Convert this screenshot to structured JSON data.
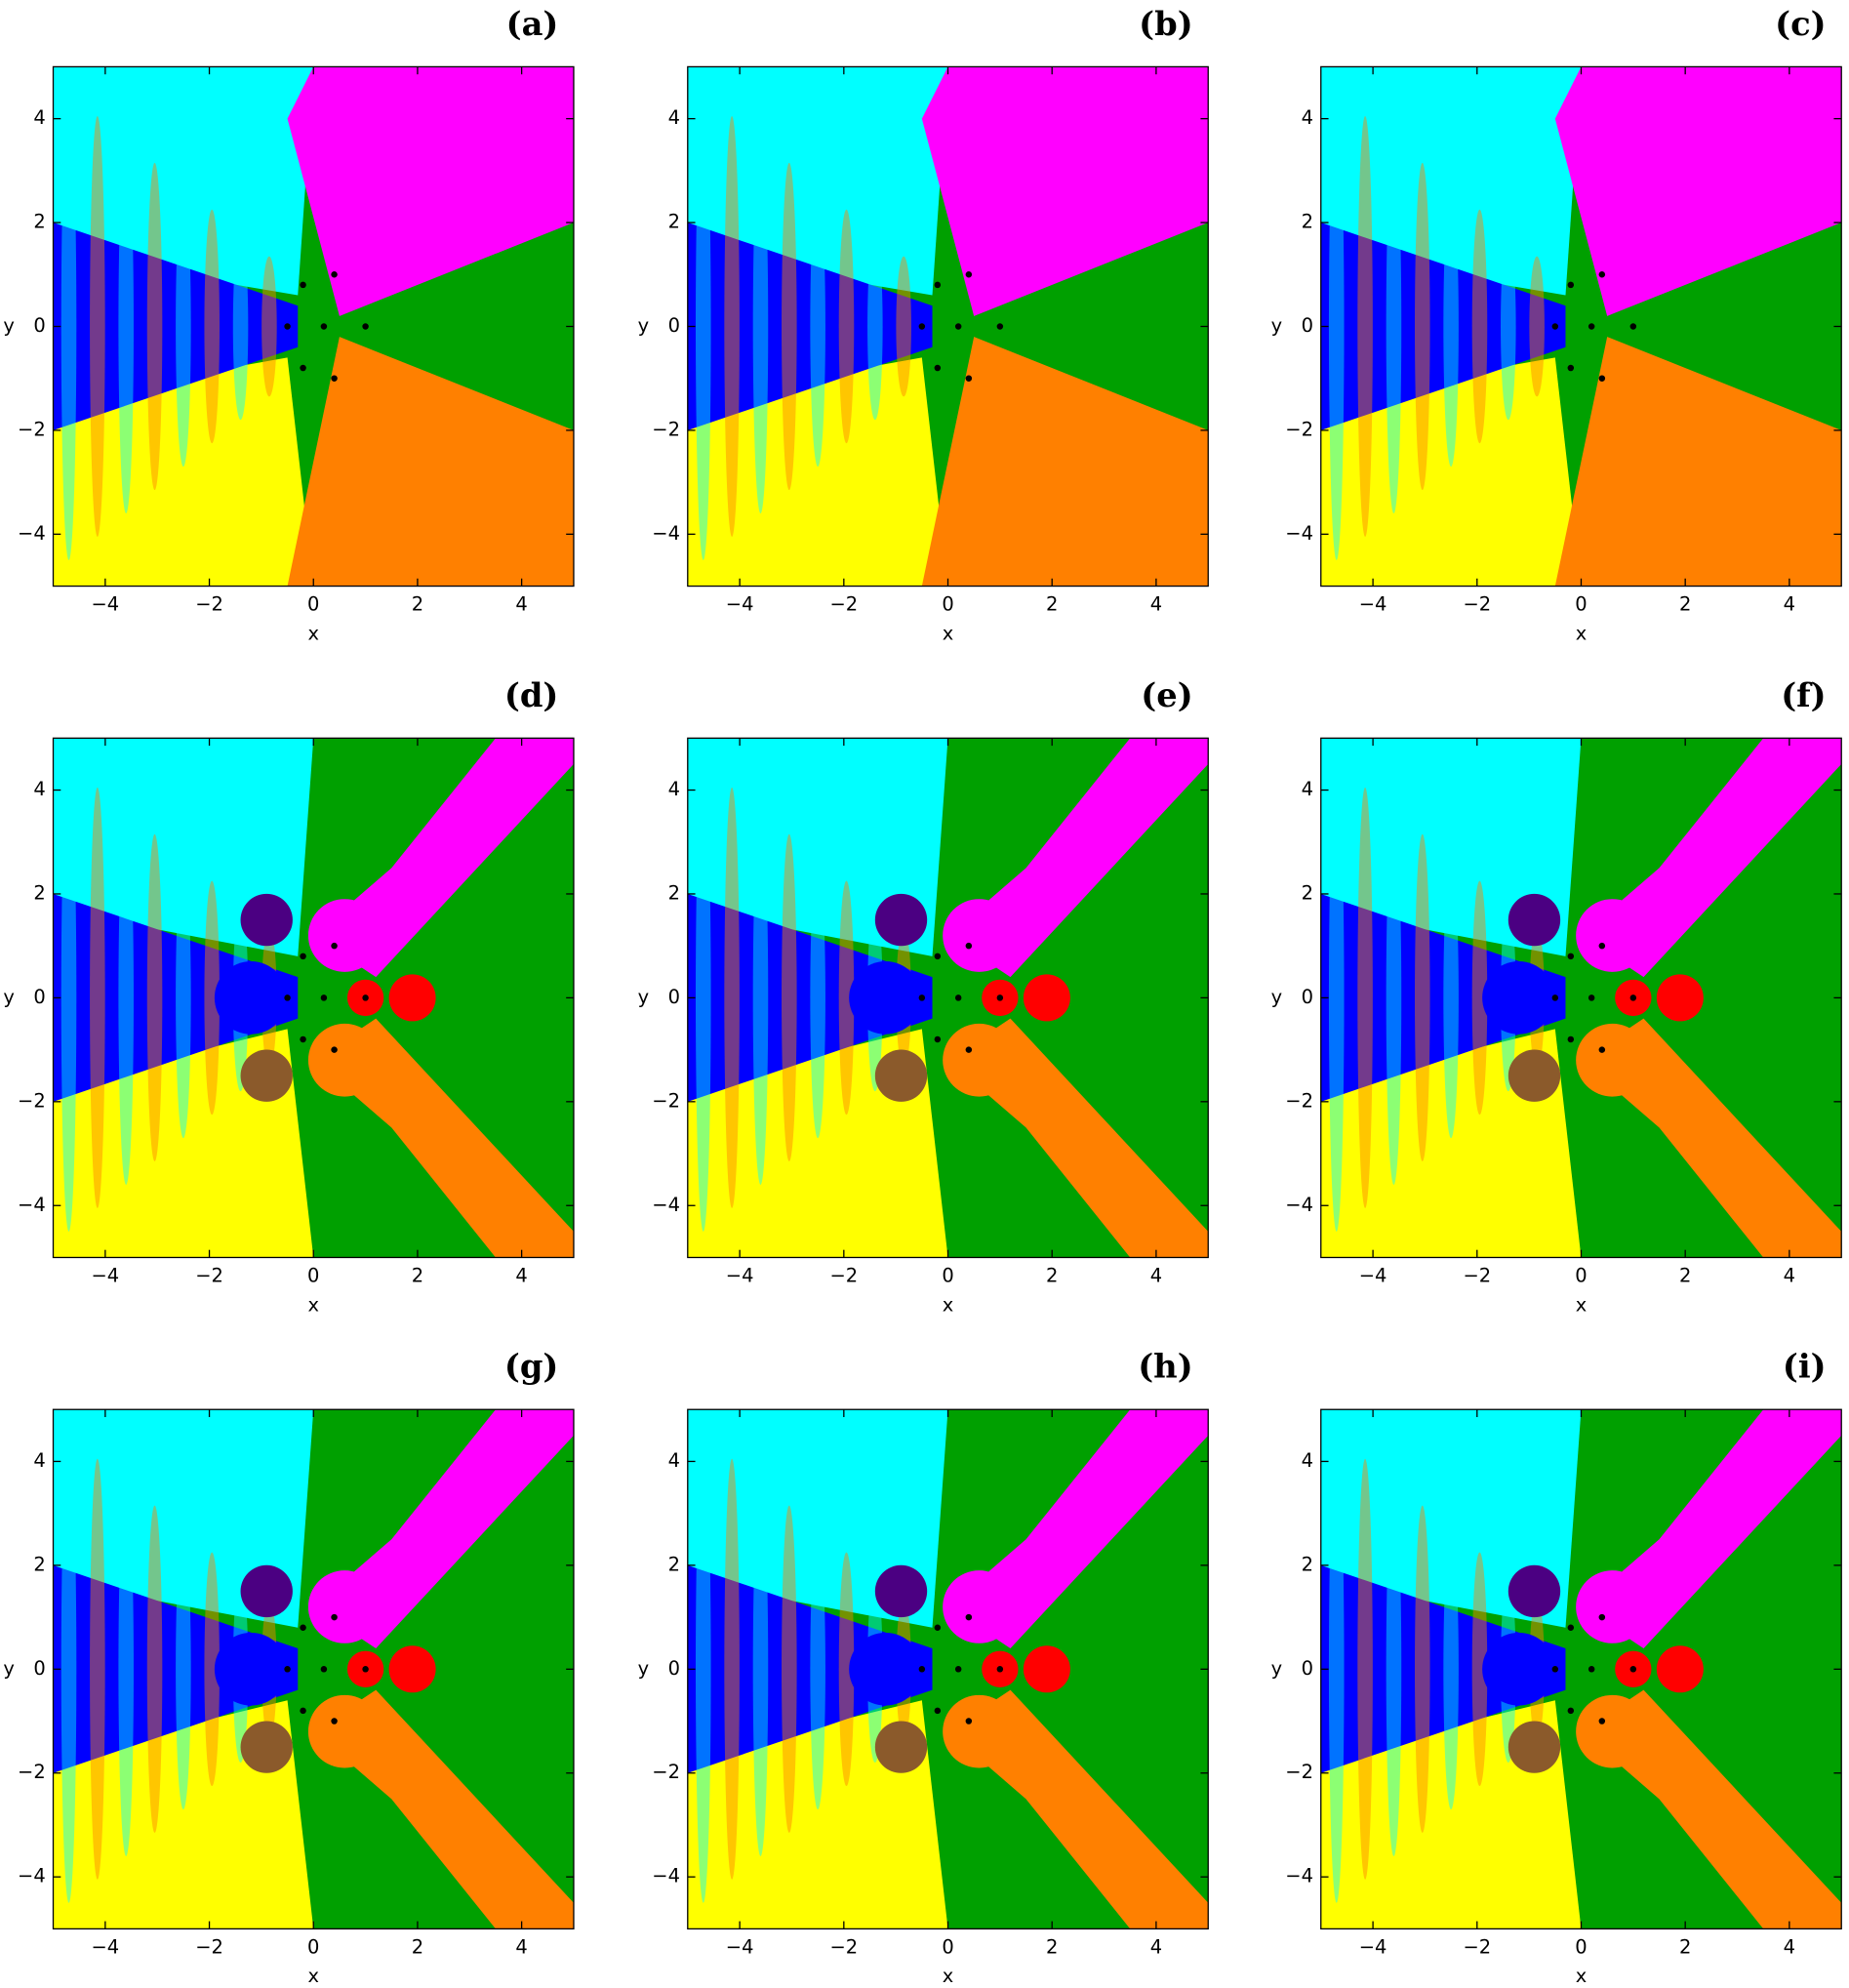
{
  "chart_data": [
    {
      "type": "heatmap",
      "label": "(a)",
      "x_label": "x",
      "y_label": "y",
      "xlim": [
        -5,
        5
      ],
      "ylim": [
        -5,
        5
      ],
      "xticks": [
        {
          "value": -4,
          "label": "−4"
        },
        {
          "value": -2,
          "label": "−2"
        },
        0,
        2,
        4
      ],
      "yticks": [
        {
          "value": -4,
          "label": "−4"
        },
        {
          "value": -2,
          "label": "−2"
        },
        0,
        2,
        4
      ]
    },
    {
      "type": "heatmap",
      "label": "(b)",
      "x_label": "x",
      "y_label": "y",
      "xlim": [
        -5,
        5
      ],
      "ylim": [
        -5,
        5
      ],
      "xticks": [
        {
          "value": -4,
          "label": "−4"
        },
        {
          "value": -2,
          "label": "−2"
        },
        0,
        2,
        4
      ],
      "yticks": [
        {
          "value": -4,
          "label": "−4"
        },
        {
          "value": -2,
          "label": "−2"
        },
        0,
        2,
        4
      ]
    },
    {
      "type": "heatmap",
      "label": "(c)",
      "x_label": "x",
      "y_label": "y",
      "xlim": [
        -5,
        5
      ],
      "ylim": [
        -5,
        5
      ],
      "xticks": [
        {
          "value": -4,
          "label": "−4"
        },
        {
          "value": -2,
          "label": "−2"
        },
        0,
        2,
        4
      ],
      "yticks": [
        {
          "value": -4,
          "label": "−4"
        },
        {
          "value": -2,
          "label": "−2"
        },
        0,
        2,
        4
      ]
    },
    {
      "type": "heatmap",
      "label": "(d)",
      "x_label": "x",
      "y_label": "y",
      "xlim": [
        -5,
        5
      ],
      "ylim": [
        -5,
        5
      ],
      "xticks": [
        {
          "value": -4,
          "label": "−4"
        },
        {
          "value": -2,
          "label": "−2"
        },
        0,
        2,
        4
      ],
      "yticks": [
        {
          "value": -4,
          "label": "−4"
        },
        {
          "value": -2,
          "label": "−2"
        },
        0,
        2,
        4
      ]
    },
    {
      "type": "heatmap",
      "label": "(e)",
      "x_label": "x",
      "y_label": "y",
      "xlim": [
        -5,
        5
      ],
      "ylim": [
        -5,
        5
      ],
      "xticks": [
        {
          "value": -4,
          "label": "−4"
        },
        {
          "value": -2,
          "label": "−2"
        },
        0,
        2,
        4
      ],
      "yticks": [
        {
          "value": -4,
          "label": "−4"
        },
        {
          "value": -2,
          "label": "−2"
        },
        0,
        2,
        4
      ]
    },
    {
      "type": "heatmap",
      "label": "(f)",
      "x_label": "x",
      "y_label": "y",
      "xlim": [
        -5,
        5
      ],
      "ylim": [
        -5,
        5
      ],
      "xticks": [
        {
          "value": -4,
          "label": "−4"
        },
        {
          "value": -2,
          "label": "−2"
        },
        0,
        2,
        4
      ],
      "yticks": [
        {
          "value": -4,
          "label": "−4"
        },
        {
          "value": -2,
          "label": "−2"
        },
        0,
        2,
        4
      ]
    },
    {
      "type": "heatmap",
      "label": "(g)",
      "x_label": "x",
      "y_label": "y",
      "xlim": [
        -5,
        5
      ],
      "ylim": [
        -5,
        5
      ],
      "xticks": [
        {
          "value": -4,
          "label": "−4"
        },
        {
          "value": -2,
          "label": "−2"
        },
        0,
        2,
        4
      ],
      "yticks": [
        {
          "value": -4,
          "label": "−4"
        },
        {
          "value": -2,
          "label": "−2"
        },
        0,
        2,
        4
      ]
    },
    {
      "type": "heatmap",
      "label": "(h)",
      "x_label": "x",
      "y_label": "y",
      "xlim": [
        -5,
        5
      ],
      "ylim": [
        -5,
        5
      ],
      "xticks": [
        {
          "value": -4,
          "label": "−4"
        },
        {
          "value": -2,
          "label": "−2"
        },
        0,
        2,
        4
      ],
      "yticks": [
        {
          "value": -4,
          "label": "−4"
        },
        {
          "value": -2,
          "label": "−2"
        },
        0,
        2,
        4
      ]
    },
    {
      "type": "heatmap",
      "label": "(i)",
      "x_label": "x",
      "y_label": "y",
      "xlim": [
        -5,
        5
      ],
      "ylim": [
        -5,
        5
      ],
      "xticks": [
        {
          "value": -4,
          "label": "−4"
        },
        {
          "value": -2,
          "label": "−2"
        },
        0,
        2,
        4
      ],
      "yticks": [
        {
          "value": -4,
          "label": "−4"
        },
        {
          "value": -2,
          "label": "−2"
        },
        0,
        2,
        4
      ]
    }
  ]
}
